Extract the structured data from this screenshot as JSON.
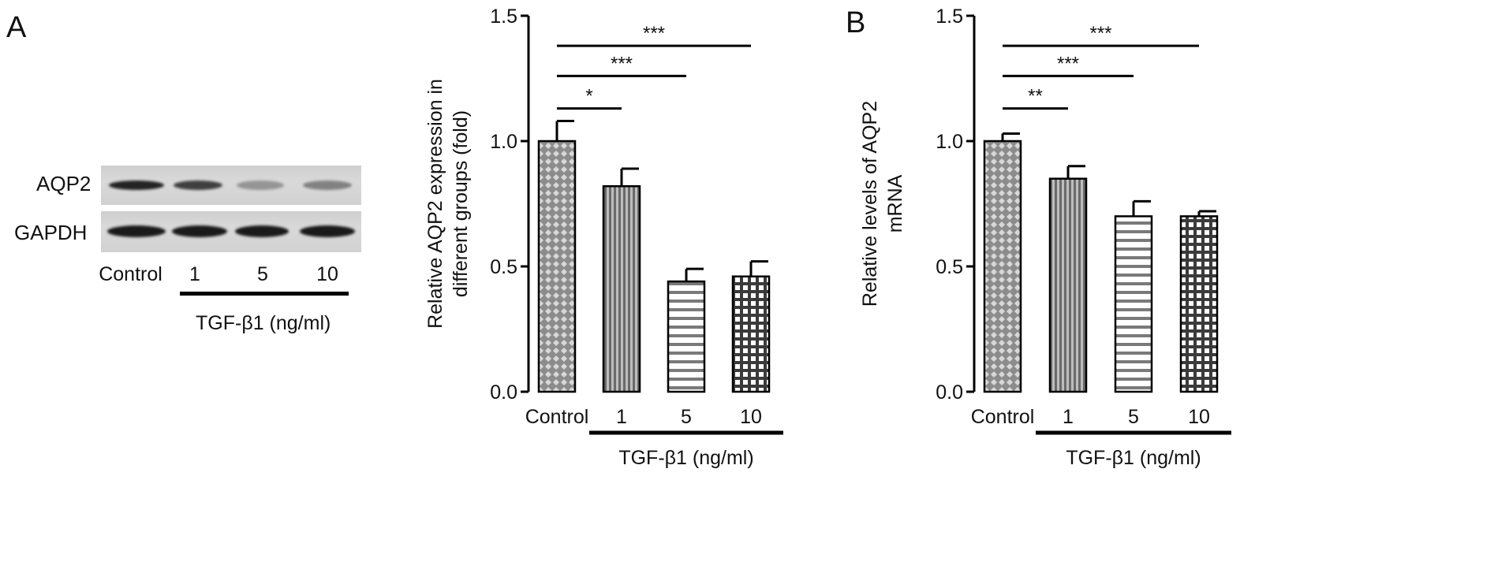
{
  "panel_a": {
    "letter": "A",
    "blot": {
      "rows": [
        {
          "label": "AQP2",
          "band_intensity": [
            0.95,
            0.8,
            0.35,
            0.45
          ]
        },
        {
          "label": "GAPDH",
          "band_intensity": [
            1.0,
            1.0,
            1.0,
            1.0
          ]
        }
      ],
      "lanes": [
        "Control",
        "1",
        "5",
        "10"
      ],
      "treatment_label": "TGF-β1 (ng/ml)"
    }
  },
  "panel_b": {
    "letter": "B"
  },
  "colors": {
    "bar_fill": "#8c8c8c",
    "bar_edge": "#000000",
    "background": "#ffffff"
  },
  "chart_data": [
    {
      "type": "bar",
      "categories": [
        "Control",
        "1",
        "5",
        "10"
      ],
      "values": [
        1.0,
        0.82,
        0.44,
        0.46
      ],
      "errors": [
        0.08,
        0.07,
        0.05,
        0.06
      ],
      "patterns": [
        "diamond",
        "vertical-stripes",
        "horizontal-stripes",
        "checker"
      ],
      "ylabel": "Relative AQP2 expression in different groups (fold)",
      "ylabel_lines": [
        "Relative AQP2 expression in",
        "different groups (fold)"
      ],
      "ylim": [
        0,
        1.5
      ],
      "yticks": [
        "0.0",
        "0.5",
        "1.0",
        "1.5"
      ],
      "group_label": "TGF-β1 (ng/ml)",
      "significance": [
        {
          "from": 0,
          "to": 1,
          "label": "*",
          "y": 1.13
        },
        {
          "from": 0,
          "to": 2,
          "label": "***",
          "y": 1.26
        },
        {
          "from": 0,
          "to": 3,
          "label": "***",
          "y": 1.38
        }
      ]
    },
    {
      "type": "bar",
      "categories": [
        "Control",
        "1",
        "5",
        "10"
      ],
      "values": [
        1.0,
        0.85,
        0.7,
        0.7
      ],
      "errors": [
        0.03,
        0.05,
        0.06,
        0.02
      ],
      "patterns": [
        "diamond",
        "vertical-stripes",
        "horizontal-stripes",
        "checker"
      ],
      "ylabel": "Relative levels of AQP2 mRNA",
      "ylabel_lines": [
        "Relative levels of AQP2",
        "mRNA"
      ],
      "ylim": [
        0,
        1.5
      ],
      "yticks": [
        "0.0",
        "0.5",
        "1.0",
        "1.5"
      ],
      "group_label": "TGF-β1 (ng/ml)",
      "significance": [
        {
          "from": 0,
          "to": 1,
          "label": "**",
          "y": 1.13
        },
        {
          "from": 0,
          "to": 2,
          "label": "***",
          "y": 1.26
        },
        {
          "from": 0,
          "to": 3,
          "label": "***",
          "y": 1.38
        }
      ]
    }
  ]
}
